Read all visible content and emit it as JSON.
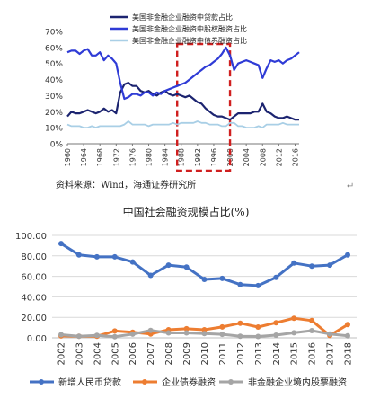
{
  "top_chart": {
    "legend": [
      "美国非金融企业融资中贷款占比",
      "美国非金融企业融资中股权融资占比",
      "美国非金融企业融资中债券融资占比"
    ],
    "source": "资料来源：Wind，海通证券研究所",
    "colors": [
      "#1c2470",
      "#2f3bd6",
      "#a9cfe6"
    ],
    "highlight_color": "#d01f1f"
  },
  "bottom_chart": {
    "title": "中国社会融资规模占比(%)",
    "legend": [
      "新增人民币贷款",
      "企业债券融资",
      "非金融企业境内股票融资"
    ],
    "colors": [
      "#4472c4",
      "#ed7d31",
      "#a5a5a5"
    ]
  },
  "chart_data": [
    {
      "type": "line",
      "title": "",
      "xlabel": "",
      "ylabel": "",
      "x": [
        1960,
        1961,
        1962,
        1963,
        1964,
        1965,
        1966,
        1967,
        1968,
        1969,
        1970,
        1971,
        1972,
        1973,
        1974,
        1975,
        1976,
        1977,
        1978,
        1979,
        1980,
        1981,
        1982,
        1983,
        1984,
        1985,
        1986,
        1987,
        1988,
        1989,
        1990,
        1991,
        1992,
        1993,
        1994,
        1995,
        1996,
        1997,
        1998,
        1999,
        2000,
        2001,
        2002,
        2003,
        2004,
        2005,
        2006,
        2007,
        2008,
        2009,
        2010,
        2011,
        2012,
        2013,
        2014,
        2015,
        2016,
        2017
      ],
      "xticks": [
        "1960",
        "1964",
        "1968",
        "1972",
        "1976",
        "1980",
        "1984",
        "1988",
        "1992",
        "1996",
        "2000",
        "2004",
        "2008",
        "2012",
        "2016"
      ],
      "yticks": [
        "0%",
        "10%",
        "20%",
        "30%",
        "40%",
        "50%",
        "60%",
        "70%"
      ],
      "ylim": [
        0,
        70
      ],
      "highlight_range": [
        1987,
        2000
      ],
      "grid": false,
      "series": [
        {
          "name": "美国非金融企业融资中贷款占比",
          "values": [
            17,
            20,
            19,
            19,
            20,
            21,
            20,
            19,
            20,
            22,
            20,
            21,
            19,
            32,
            37,
            38,
            36,
            36,
            33,
            32,
            33,
            31,
            30,
            32,
            33,
            31,
            30,
            31,
            30,
            29,
            30,
            28,
            26,
            25,
            22,
            20,
            18,
            17,
            17,
            16,
            15,
            17,
            19,
            19,
            19,
            19,
            20,
            20,
            25,
            20,
            19,
            17,
            16,
            16,
            17,
            16,
            15,
            15
          ]
        },
        {
          "name": "美国非金融企业融资中股权融资占比",
          "values": [
            57,
            58,
            58,
            56,
            58,
            59,
            55,
            55,
            57,
            52,
            55,
            53,
            50,
            38,
            28,
            29,
            31,
            31,
            30,
            32,
            32,
            30,
            32,
            31,
            33,
            34,
            35,
            36,
            37,
            38,
            40,
            42,
            44,
            46,
            48,
            49,
            51,
            53,
            56,
            60,
            55,
            46,
            50,
            51,
            52,
            51,
            50,
            49,
            41,
            47,
            52,
            51,
            52,
            50,
            52,
            53,
            55,
            57
          ]
        },
        {
          "name": "美国非金融企业融资中债券融资占比",
          "values": [
            12,
            11,
            11,
            11,
            10,
            10,
            11,
            10,
            11,
            11,
            11,
            11,
            11,
            11,
            12,
            14,
            12,
            12,
            12,
            12,
            11,
            12,
            12,
            12,
            12,
            12,
            13,
            12,
            13,
            13,
            13,
            13,
            14,
            13,
            13,
            12,
            12,
            12,
            11,
            11,
            13,
            13,
            11,
            11,
            10,
            10,
            10,
            11,
            10,
            12,
            12,
            12,
            12,
            13,
            12,
            12,
            12,
            12
          ]
        }
      ]
    },
    {
      "type": "line",
      "title": "中国社会融资规模占比(%)",
      "xlabel": "",
      "ylabel": "",
      "x": [
        "2002",
        "2003",
        "2004",
        "2005",
        "2006",
        "2007",
        "2008",
        "2009",
        "2010",
        "2011",
        "2012",
        "2013",
        "2014",
        "2015",
        "2016",
        "2017",
        "2018"
      ],
      "yticks": [
        "0.00",
        "20.00",
        "40.00",
        "60.00",
        "80.00",
        "100.00"
      ],
      "ylim": [
        0,
        100
      ],
      "grid": true,
      "series": [
        {
          "name": "新增人民币贷款",
          "values": [
            92,
            81,
            79,
            79,
            74,
            61,
            71,
            69,
            57,
            58,
            52,
            51,
            59,
            73,
            70,
            71,
            81
          ]
        },
        {
          "name": "企业债券融资",
          "values": [
            1.8,
            1.5,
            1.6,
            6.7,
            5.4,
            3.8,
            7.9,
            8.9,
            7.9,
            10.6,
            14.3,
            10.5,
            14.7,
            19.1,
            16.8,
            2.3,
            12.9
          ]
        },
        {
          "name": "非金融企业境内股票融资",
          "values": [
            3.1,
            1.6,
            2.4,
            1.1,
            3.6,
            7.3,
            4.8,
            4.8,
            4.1,
            3.4,
            1.6,
            1.3,
            2.6,
            4.9,
            7.0,
            3.8,
            1.9
          ]
        }
      ]
    }
  ]
}
